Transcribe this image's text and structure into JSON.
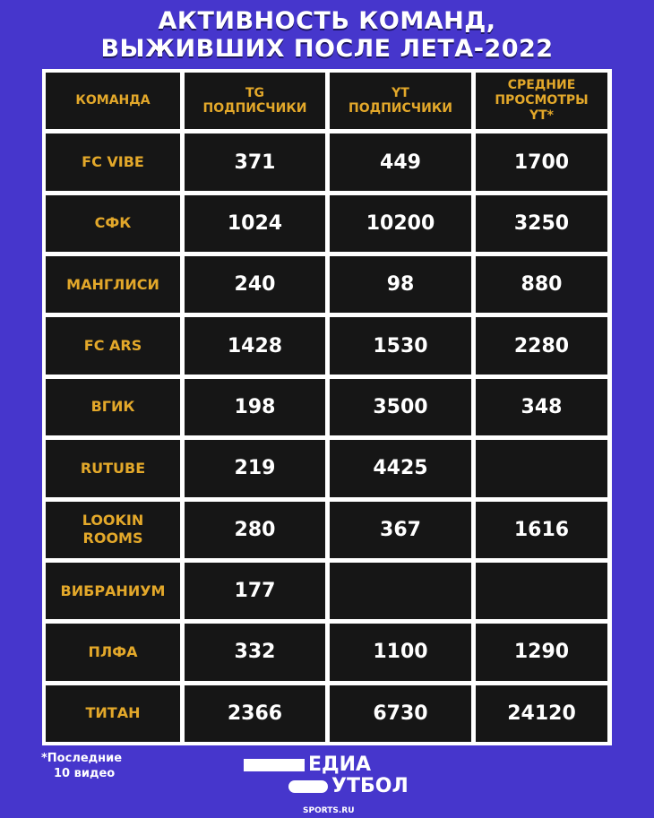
{
  "title": {
    "line1": "АКТИВНОСТЬ КОМАНД,",
    "line2": "ВЫЖИВШИХ ПОСЛЕ ЛЕТА-2022"
  },
  "headers": [
    "КОМАНДА",
    "TG ПОДПИСЧИКИ",
    "YT ПОДПИСЧИКИ",
    "СРЕДНИЕ ПРОСМОТРЫ YT*"
  ],
  "rows": [
    {
      "team": "FC VIBE",
      "tg": "371",
      "yt": "449",
      "views": "1700"
    },
    {
      "team": "СФК",
      "tg": "1024",
      "yt": "10200",
      "views": "3250"
    },
    {
      "team": "МАНГЛИСИ",
      "tg": "240",
      "yt": "98",
      "views": "880"
    },
    {
      "team": "FC ARS",
      "tg": "1428",
      "yt": "1530",
      "views": "2280"
    },
    {
      "team": "ВГИК",
      "tg": "198",
      "yt": "3500",
      "views": "348"
    },
    {
      "team": "RUTUBE",
      "tg": "219",
      "yt": "4425",
      "views": ""
    },
    {
      "team": "LOOKIN ROOMS",
      "tg": "280",
      "yt": "367",
      "views": "1616"
    },
    {
      "team": "ВИБРАНИУМ",
      "tg": "177",
      "yt": "",
      "views": ""
    },
    {
      "team": "ПЛФА",
      "tg": "332",
      "yt": "1100",
      "views": "1290"
    },
    {
      "team": "ТИТАН",
      "tg": "2366",
      "yt": "6730",
      "views": "24120"
    }
  ],
  "footnote": {
    "line1": "*Последние",
    "line2": "10 видео"
  },
  "logo": {
    "line1": "ЕДИА",
    "line2": "УТБОЛ",
    "text": "МЕДИА ФУТБОЛ"
  },
  "source": "SPORTS.RU",
  "colors": {
    "background": "#4636cc",
    "cell": "#161616",
    "accent": "#e3a82a",
    "grid": "#ffffff"
  }
}
